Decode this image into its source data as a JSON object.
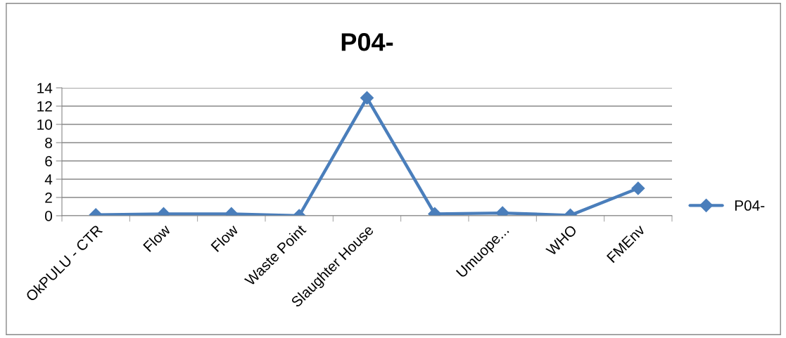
{
  "chart_data": {
    "type": "line",
    "title": "P04-",
    "categories": [
      "OkPULU - CTR",
      "Flow",
      "Flow",
      "Waste Point",
      "Slaughter House",
      null,
      "Umuope...",
      "WHO",
      "FMEnv"
    ],
    "series": [
      {
        "name": "P04-",
        "color": "#4a7ebb",
        "values": [
          0.1,
          0.2,
          0.2,
          0,
          12.9,
          0.2,
          0.3,
          0.05,
          3
        ]
      }
    ],
    "ylim": [
      0,
      14
    ],
    "yticks": [
      0,
      2,
      4,
      6,
      8,
      10,
      12,
      14
    ],
    "grid": "y",
    "legend": "right",
    "marker": "diamond",
    "line_style": "solid"
  }
}
